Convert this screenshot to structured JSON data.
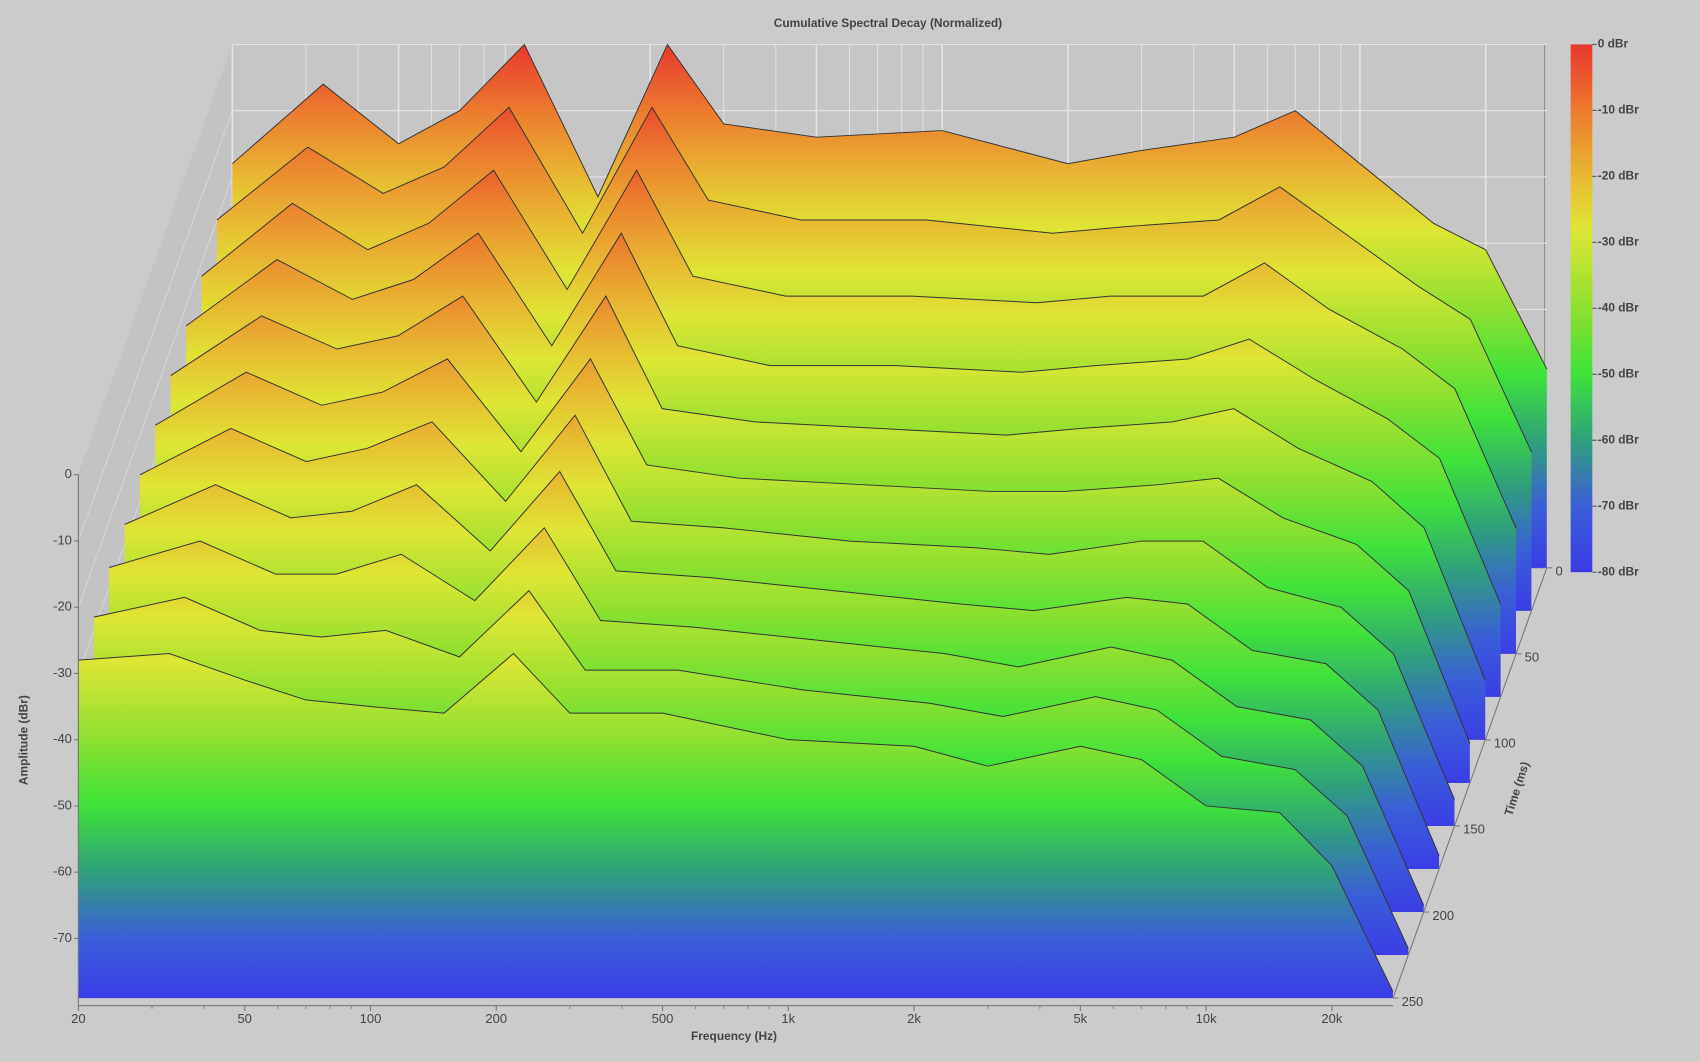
{
  "chart_data": {
    "type": "waterfall",
    "title": "Cumulative Spectral Decay (Normalized)",
    "x_label": "Frequency (Hz)",
    "y_label": "Amplitude (dBr)",
    "z_label": "Time (ms)",
    "log_x": true,
    "xlim": [
      20,
      28000
    ],
    "xticks": [
      20,
      50,
      100,
      200,
      500,
      {
        "value": 1000,
        "label": "1k"
      },
      {
        "value": 2000,
        "label": "2k"
      },
      {
        "value": 5000,
        "label": "5k"
      },
      {
        "value": 10000,
        "label": "10k"
      },
      {
        "value": 20000,
        "label": "20k"
      }
    ],
    "xminor": [
      30,
      40,
      60,
      70,
      80,
      90,
      300,
      400,
      600,
      700,
      800,
      900,
      3000,
      4000,
      6000,
      7000,
      8000,
      9000
    ],
    "ylim": [
      -79,
      0
    ],
    "yticks": [
      0,
      -10,
      -20,
      -30,
      -40,
      -50,
      -60,
      -70
    ],
    "zlim": [
      0,
      250
    ],
    "zticks": [
      0,
      50,
      100,
      150,
      200,
      250
    ],
    "grid": true,
    "line_color": "#333333",
    "x": [
      20,
      33,
      50,
      70,
      100,
      150,
      220,
      300,
      500,
      1000,
      2000,
      3000,
      5000,
      7000,
      10000,
      15000,
      20000,
      28000
    ],
    "z": [
      0,
      25,
      50,
      75,
      100,
      125,
      150,
      175,
      200,
      225,
      250
    ],
    "series": [
      {
        "values": [
          -18,
          -6,
          -15,
          -10,
          0,
          -23,
          0,
          -12,
          -14,
          -13,
          -18,
          -16,
          -14,
          -10,
          -18,
          -27,
          -31,
          -49
        ]
      },
      {
        "values": [
          -20,
          -9,
          -16,
          -12,
          -3,
          -22,
          -3,
          -17,
          -20,
          -20,
          -22,
          -21,
          -20,
          -15,
          -22,
          -30,
          -35,
          -55
        ]
      },
      {
        "values": [
          -22,
          -11,
          -18,
          -14,
          -6,
          -24,
          -6,
          -22,
          -25,
          -25,
          -26,
          -25,
          -25,
          -20,
          -27,
          -33,
          -39,
          -60
        ]
      },
      {
        "values": [
          -23,
          -13,
          -19,
          -16,
          -9,
          -26,
          -9,
          -26,
          -29,
          -29,
          -30,
          -29,
          -28,
          -25,
          -31,
          -37,
          -43,
          -65
        ]
      },
      {
        "values": [
          -24,
          -15,
          -20,
          -18,
          -12,
          -28,
          -12,
          -29,
          -31,
          -32,
          -33,
          -32,
          -31,
          -29,
          -35,
          -40,
          -47,
          -70
        ]
      },
      {
        "values": [
          -25,
          -17,
          -22,
          -20,
          -15,
          -29,
          -15,
          -31,
          -33,
          -34,
          -35,
          -35,
          -34,
          -33,
          -39,
          -43,
          -50,
          -73
        ]
      },
      {
        "values": [
          -26,
          -19,
          -24,
          -22,
          -18,
          -30,
          -17,
          -33,
          -34,
          -36,
          -37,
          -38,
          -36,
          -36,
          -43,
          -46,
          -53,
          -75
        ]
      },
      {
        "values": [
          -27,
          -21,
          -26,
          -25,
          -21,
          -31,
          -19,
          -34,
          -35,
          -37,
          -39,
          -40,
          -38,
          -39,
          -46,
          -48,
          -55,
          -77
        ]
      },
      {
        "values": [
          -27,
          -23,
          -28,
          -28,
          -25,
          -32,
          -21,
          -35,
          -36,
          -38,
          -40,
          -42,
          -39,
          -41,
          -48,
          -50,
          -57,
          -78
        ]
      },
      {
        "values": [
          -28,
          -25,
          -30,
          -31,
          -30,
          -34,
          -24,
          -36,
          -36,
          -39,
          -41,
          -43,
          -40,
          -42,
          -49,
          -51,
          -58,
          -78
        ]
      },
      {
        "values": [
          -28,
          -27,
          -31,
          -34,
          -35,
          -36,
          -27,
          -36,
          -36,
          -40,
          -41,
          -44,
          -41,
          -43,
          -50,
          -51,
          -59,
          -78
        ]
      }
    ],
    "colorbar": {
      "lim": [
        -80,
        0
      ],
      "ticks": [
        {
          "value": 0,
          "label": "0 dBr"
        },
        {
          "value": -10,
          "label": "-10 dBr"
        },
        {
          "value": -20,
          "label": "-20 dBr"
        },
        {
          "value": -30,
          "label": "-30 dBr"
        },
        {
          "value": -40,
          "label": "-40 dBr"
        },
        {
          "value": -50,
          "label": "-50 dBr"
        },
        {
          "value": -60,
          "label": "-60 dBr"
        },
        {
          "value": -70,
          "label": "-70 dBr"
        },
        {
          "value": -80,
          "label": "-80 dBr"
        }
      ],
      "stops": [
        {
          "value": 0,
          "color": "#e8382c"
        },
        {
          "value": -10,
          "color": "#ec7a2e"
        },
        {
          "value": -20,
          "color": "#e8b832"
        },
        {
          "value": -28,
          "color": "#dfe634"
        },
        {
          "value": -40,
          "color": "#8ee030"
        },
        {
          "value": -50,
          "color": "#3ee23a"
        },
        {
          "value": -60,
          "color": "#2fa07c"
        },
        {
          "value": -70,
          "color": "#3a5ed8"
        },
        {
          "value": -80,
          "color": "#3a3ae6"
        }
      ]
    }
  }
}
